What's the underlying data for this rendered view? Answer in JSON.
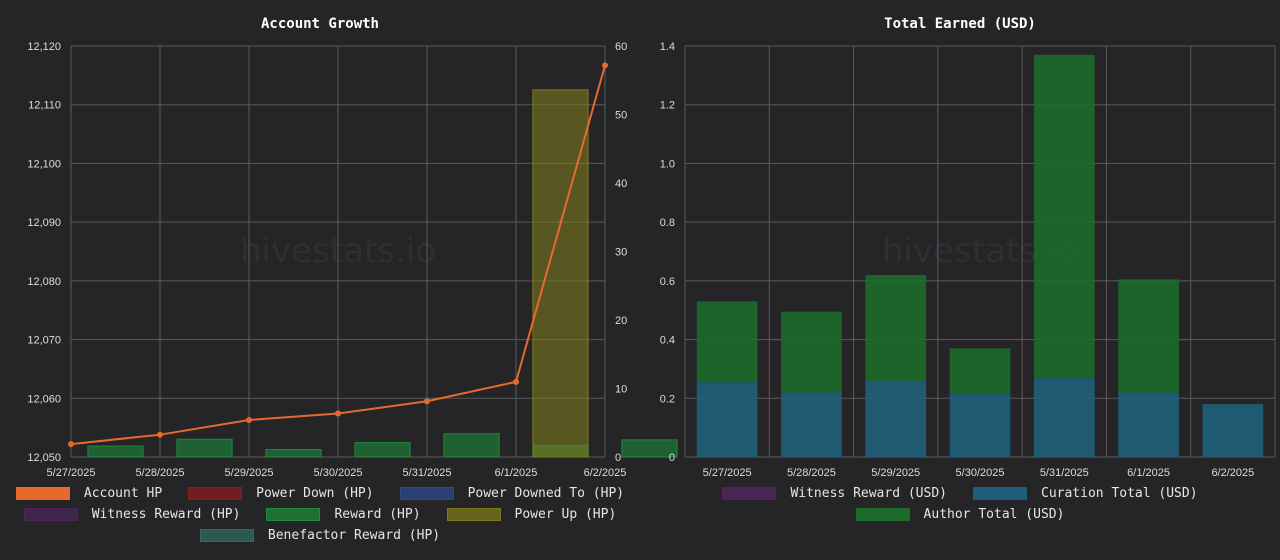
{
  "watermark": "hivestats.io",
  "chart_data": [
    {
      "type": "bar",
      "title": "Account Growth",
      "categories": [
        "5/27/2025",
        "5/28/2025",
        "5/29/2025",
        "5/30/2025",
        "5/31/2025",
        "6/1/2025",
        "6/2/2025"
      ],
      "y_left": {
        "min": 12050,
        "max": 12120,
        "ticks": [
          12050,
          12060,
          12070,
          12080,
          12090,
          12100,
          12110,
          12120
        ]
      },
      "y_right": {
        "min": 0,
        "max": 60,
        "ticks": [
          0,
          10,
          20,
          30,
          40,
          50,
          60
        ]
      },
      "tick_labels_left": [
        "12,050",
        "12,060",
        "12,070",
        "12,080",
        "12,090",
        "12,100",
        "12,110",
        "12,120"
      ],
      "tick_labels_right": [
        "0",
        "10",
        "20",
        "30",
        "40",
        "50",
        "60"
      ],
      "grid": true,
      "series": [
        {
          "name": "Account HP",
          "kind": "line",
          "axis": "left",
          "color": "#e8692e",
          "values": [
            12052.2,
            12053.8,
            12056.3,
            12057.4,
            12059.5,
            12062.8,
            12116.7
          ]
        },
        {
          "name": "Power Down (HP)",
          "kind": "bar",
          "axis": "right",
          "color": "#8b1c1c",
          "values": [
            0,
            0,
            0,
            0,
            0,
            0,
            0
          ]
        },
        {
          "name": "Power Downed To (HP)",
          "kind": "bar",
          "axis": "right",
          "color": "#2c4a8c",
          "values": [
            0,
            0,
            0,
            0,
            0,
            0,
            0
          ]
        },
        {
          "name": "Witness Reward (HP)",
          "kind": "bar",
          "axis": "right",
          "color": "#4a2555",
          "values": [
            0,
            0,
            0,
            0,
            0,
            0,
            0
          ]
        },
        {
          "name": "Reward (HP)",
          "kind": "bar",
          "axis": "right",
          "color": "#1e8a3a",
          "values": [
            1.6,
            2.6,
            1.1,
            2.1,
            3.4,
            1.7,
            2.5
          ]
        },
        {
          "name": "Power Up (HP)",
          "kind": "bar",
          "axis": "right",
          "color": "#7d7a1c",
          "values": [
            0,
            0,
            0,
            0,
            0,
            53.6,
            0
          ]
        },
        {
          "name": "Benefactor Reward (HP)",
          "kind": "bar",
          "axis": "right",
          "color": "#2f6b5e",
          "values": [
            0,
            0,
            0,
            0,
            0,
            0,
            0
          ]
        }
      ],
      "legend_placement": "bottom"
    },
    {
      "type": "bar",
      "stacked": true,
      "title": "Total Earned (USD)",
      "categories": [
        "5/27/2025",
        "5/28/2025",
        "5/29/2025",
        "5/30/2025",
        "5/31/2025",
        "6/1/2025",
        "6/2/2025"
      ],
      "y": {
        "min": 0,
        "max": 1.4,
        "ticks": [
          0,
          0.2,
          0.4,
          0.6,
          0.8,
          1.0,
          1.2,
          1.4
        ]
      },
      "tick_labels": [
        "0",
        "0.2",
        "0.4",
        "0.6",
        "0.8",
        "1.0",
        "1.2",
        "1.4"
      ],
      "grid": true,
      "series": [
        {
          "name": "Witness Reward (USD)",
          "color": "#4a2555",
          "values": [
            0,
            0,
            0,
            0,
            0,
            0,
            0
          ]
        },
        {
          "name": "Curation Total (USD)",
          "color": "#1f5f7a",
          "values": [
            0.255,
            0.22,
            0.26,
            0.215,
            0.27,
            0.22,
            0.18
          ]
        },
        {
          "name": "Author Total (USD)",
          "color": "#1d6b2a",
          "values": [
            0.275,
            0.275,
            0.36,
            0.155,
            1.1,
            0.385,
            0
          ]
        }
      ],
      "legend_placement": "bottom"
    }
  ]
}
